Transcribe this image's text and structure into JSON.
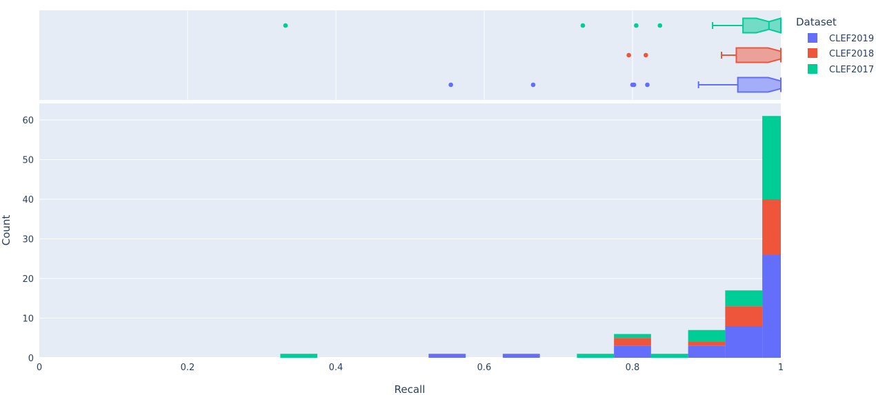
{
  "chart_data": [
    {
      "type": "bar",
      "stacked": true,
      "xlabel": "Recall",
      "ylabel": "Count",
      "xlim": [
        0,
        1
      ],
      "ylim": [
        0,
        64
      ],
      "grid": true,
      "x_ticks": [
        "0",
        "0.2",
        "0.4",
        "0.6",
        "0.8",
        "1"
      ],
      "y_ticks": [
        "0",
        "10",
        "20",
        "30",
        "40",
        "50",
        "60"
      ],
      "bin_width": 0.05,
      "bin_centers": [
        0.35,
        0.55,
        0.65,
        0.75,
        0.8,
        0.85,
        0.9,
        0.95,
        1.0
      ],
      "series": [
        {
          "name": "CLEF2019",
          "color": "#636efa",
          "values": [
            0,
            1,
            1,
            0,
            3,
            0,
            3,
            8,
            26
          ]
        },
        {
          "name": "CLEF2018",
          "color": "#ef553b",
          "values": [
            0,
            0,
            0,
            0,
            2,
            0,
            1,
            5,
            14
          ]
        },
        {
          "name": "CLEF2017",
          "color": "#00cc96",
          "values": [
            1,
            0,
            0,
            1,
            1,
            1,
            3,
            4,
            21
          ]
        }
      ]
    },
    {
      "type": "box",
      "orientation": "horizontal",
      "notched": true,
      "boxes": [
        {
          "name": "CLEF2017",
          "color": "#00cc96",
          "lower_whisker": 0.908,
          "q1": 0.949,
          "median": 0.984,
          "q3": 1.0,
          "upper_whisker": 1.0,
          "outliers": [
            0.332,
            0.733,
            0.805,
            0.837
          ]
        },
        {
          "name": "CLEF2018",
          "color": "#ef553b",
          "lower_whisker": 0.92,
          "q1": 0.94,
          "median": 1.0,
          "q3": 1.0,
          "upper_whisker": 1.0,
          "outliers": [
            0.795,
            0.818
          ]
        },
        {
          "name": "CLEF2019",
          "color": "#636efa",
          "lower_whisker": 0.889,
          "q1": 0.942,
          "median": 1.0,
          "q3": 1.0,
          "upper_whisker": 1.0,
          "outliers": [
            0.555,
            0.666,
            0.8,
            0.802,
            0.82
          ]
        }
      ]
    }
  ],
  "legend": {
    "title": "Dataset",
    "position": "right",
    "items": [
      {
        "label": "CLEF2019",
        "color": "#636efa"
      },
      {
        "label": "CLEF2018",
        "color": "#ef553b"
      },
      {
        "label": "CLEF2017",
        "color": "#00cc96"
      }
    ]
  }
}
